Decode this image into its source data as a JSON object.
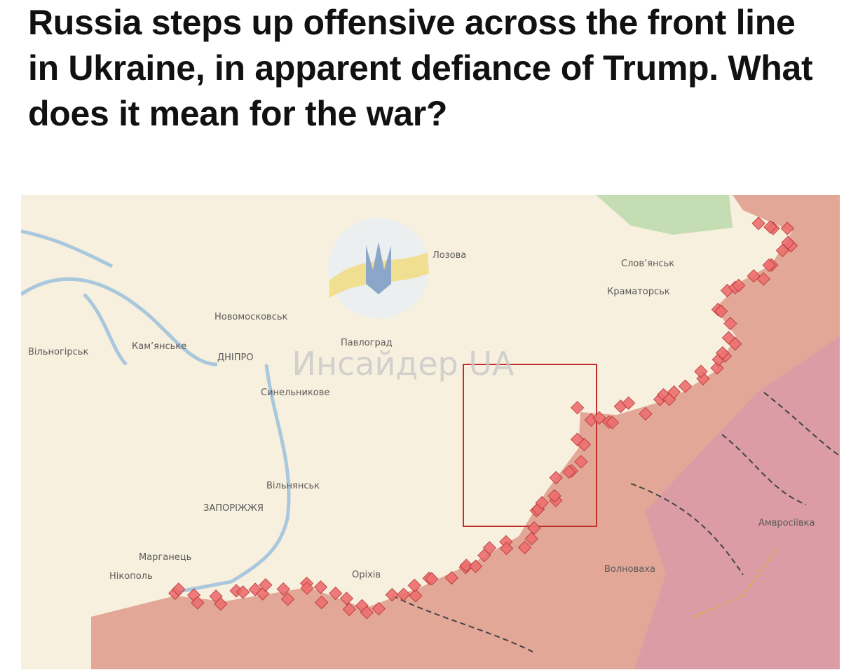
{
  "headline": "Russia steps up offensive across the front line in Ukraine, in apparent defiance of Trump. What does it mean for the war?",
  "map": {
    "watermark": "Инсайдер UA",
    "labels": [
      "Лозова",
      "Слов’янськ",
      "Краматорськ",
      "Новомосковськ",
      "Павлоград",
      "Вільногірськ",
      "Кам’янське",
      "ДНІПРО",
      "Синельникове",
      "Вільнянськ",
      "ЗАПОРІЖЖЯ",
      "Марганець",
      "Нікополь",
      "Оріхів",
      "Волноваха",
      "Амвросіївка"
    ]
  }
}
